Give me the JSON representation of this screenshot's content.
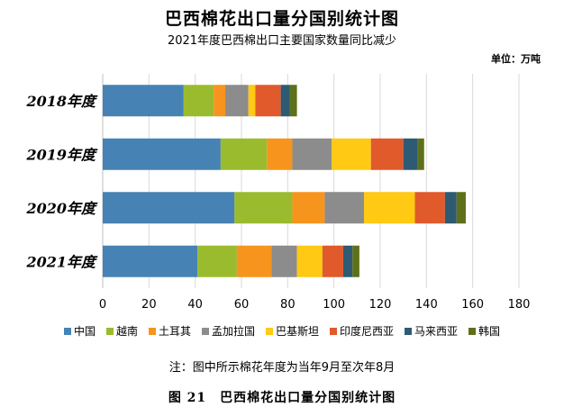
{
  "header": {
    "title": "巴西棉花出口量分国别统计图",
    "subtitle": "2021年度巴西棉出口主要国家数量同比减少",
    "unit": "单位：万吨"
  },
  "note": "注：图中所示棉花年度为当年9月至次年8月",
  "caption": "图 21　巴西棉花出口量分国别统计图",
  "chart_data": {
    "type": "bar",
    "orientation": "horizontal",
    "stacked": true,
    "categories": [
      "2018年度",
      "2019年度",
      "2020年度",
      "2021年度"
    ],
    "xlim": [
      0,
      180
    ],
    "xticks": [
      0,
      20,
      40,
      60,
      80,
      100,
      120,
      140,
      160,
      180
    ],
    "grid": true,
    "legend_position": "bottom",
    "series": [
      {
        "name": "中国",
        "color": "#4682B4",
        "values": [
          35,
          51,
          57,
          41
        ]
      },
      {
        "name": "越南",
        "color": "#9BBB2F",
        "values": [
          13,
          20,
          25,
          17
        ]
      },
      {
        "name": "土耳其",
        "color": "#F7941D",
        "values": [
          5,
          11,
          14,
          15
        ]
      },
      {
        "name": "孟加拉国",
        "color": "#8C8C8C",
        "values": [
          10,
          17,
          17,
          11
        ]
      },
      {
        "name": "巴基斯坦",
        "color": "#FFC914",
        "values": [
          3,
          17,
          22,
          11
        ]
      },
      {
        "name": "印度尼西亚",
        "color": "#E05A2B",
        "values": [
          11,
          14,
          13,
          9
        ]
      },
      {
        "name": "马来西亚",
        "color": "#2E5A73",
        "values": [
          4,
          6,
          5,
          4
        ]
      },
      {
        "name": "韩国",
        "color": "#5E7019",
        "values": [
          3,
          3,
          4,
          3
        ]
      }
    ]
  }
}
